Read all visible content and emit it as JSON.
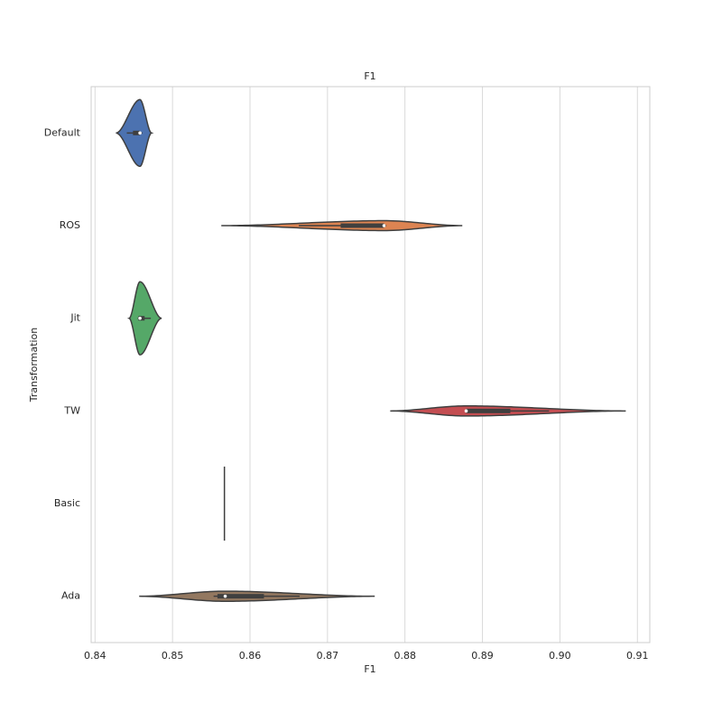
{
  "chart_data": {
    "type": "violin",
    "title": "F1",
    "xlabel": "F1",
    "ylabel": "Transformation",
    "categories": [
      "Default",
      "ROS",
      "Jit",
      "TW",
      "Basic",
      "Ada"
    ],
    "violins": [
      {
        "color": "#4c72b0",
        "min": 0.8427,
        "whisker_low": 0.8441,
        "q1": 0.8449,
        "median": 0.8458,
        "q3": 0.8458,
        "whisker_high": 0.8461,
        "max": 0.8473
      },
      {
        "color": "#dd8452",
        "min": 0.8563,
        "whisker_low": 0.8663,
        "q1": 0.8717,
        "median": 0.8773,
        "q3": 0.8773,
        "whisker_high": 0.8776,
        "max": 0.8874
      },
      {
        "color": "#55a868",
        "min": 0.8444,
        "whisker_low": 0.8455,
        "q1": 0.8456,
        "median": 0.8458,
        "q3": 0.8464,
        "whisker_high": 0.8472,
        "max": 0.8486
      },
      {
        "color": "#c44e52",
        "min": 0.8781,
        "whisker_low": 0.8879,
        "q1": 0.8879,
        "median": 0.8879,
        "q3": 0.8936,
        "whisker_high": 0.8986,
        "max": 0.9085
      },
      {
        "color": "#8172b3",
        "min": 0.8567,
        "whisker_low": 0.8567,
        "q1": 0.8567,
        "median": 0.8567,
        "q3": 0.8567,
        "whisker_high": 0.8567,
        "max": 0.8567
      },
      {
        "color": "#937860",
        "min": 0.8457,
        "whisker_low": 0.8553,
        "q1": 0.8558,
        "median": 0.8568,
        "q3": 0.8618,
        "whisker_high": 0.8664,
        "max": 0.8761
      }
    ],
    "xlim": [
      0.8395,
      0.9116
    ],
    "xticks": [
      0.84,
      0.85,
      0.86,
      0.87,
      0.88,
      {
        "value": 0.89,
        "label": "0.89"
      },
      {
        "value": 0.9,
        "label": "0.90"
      },
      0.91
    ],
    "grid": true
  }
}
